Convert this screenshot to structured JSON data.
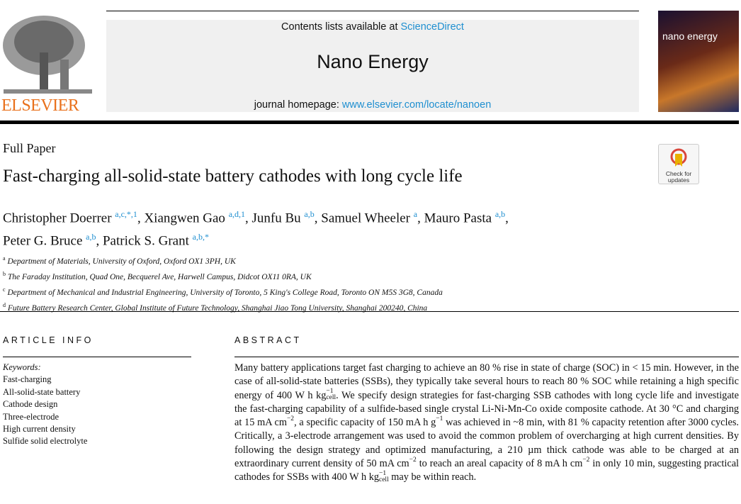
{
  "header": {
    "contents_prefix": "Contents lists available at ",
    "contents_link": "ScienceDirect",
    "journal": "Nano Energy",
    "homepage_prefix": "journal homepage: ",
    "homepage_link": "www.elsevier.com/locate/nanoen",
    "publisher": "ELSEVIER",
    "cover_title": "nano energy"
  },
  "check_updates": "Check for updates",
  "paper": {
    "type": "Full Paper",
    "title": "Fast-charging all-solid-state battery cathodes with long cycle life"
  },
  "authors": [
    {
      "name": "Christopher Doerrer",
      "aff": "a,c,*,1",
      "sep": ", "
    },
    {
      "name": "Xiangwen Gao",
      "aff": "a,d,1",
      "sep": ", "
    },
    {
      "name": "Junfu Bu",
      "aff": "a,b",
      "sep": ", "
    },
    {
      "name": "Samuel Wheeler",
      "aff": "a",
      "sep": ", "
    },
    {
      "name": "Mauro Pasta",
      "aff": "a,b",
      "sep": ","
    },
    {
      "name": "Peter G. Bruce",
      "aff": "a,b",
      "sep": ", "
    },
    {
      "name": "Patrick S. Grant",
      "aff": "a,b,*",
      "sep": ""
    }
  ],
  "affiliations": [
    {
      "key": "a",
      "text": "Department of Materials, University of Oxford, Oxford OX1 3PH, UK"
    },
    {
      "key": "b",
      "text": "The Faraday Institution, Quad One, Becquerel Ave, Harwell Campus, Didcot OX11 0RA, UK"
    },
    {
      "key": "c",
      "text": "Department of Mechanical and Industrial Engineering, University of Toronto, 5 King's College Road, Toronto ON M5S 3G8, Canada"
    },
    {
      "key": "d",
      "text": "Future Battery Research Center, Global Institute of Future Technology, Shanghai Jiao Tong University, Shanghai 200240, China"
    }
  ],
  "article_info": {
    "heading": "ARTICLE INFO",
    "keywords_label": "Keywords:",
    "keywords": [
      "Fast-charging",
      "All-solid-state battery",
      "Cathode design",
      "Three-electrode",
      "High current density",
      "Sulfide solid electrolyte"
    ]
  },
  "abstract": {
    "heading": "ABSTRACT",
    "segments": [
      {
        "t": "Many battery applications target fast charging to achieve an 80 % rise in state of charge (SOC) in < 15 min. However, in the case of all-solid-state batteries (SSBs), they typically take several hours to reach 80 % SOC while retaining a high specific energy of 400 W h kg"
      },
      {
        "sup": "−1",
        "sub": "cell"
      },
      {
        "t": ". We specify design strategies for fast-charging SSB cathodes with long cycle life and investigate the fast-charging capability of a sulfide-based single crystal Li-Ni-Mn-Co oxide composite cathode. At 30 °C and charging at 15 mA cm"
      },
      {
        "sup": "−2"
      },
      {
        "t": ", a specific capacity of 150 mA h g"
      },
      {
        "sup": "−1"
      },
      {
        "t": " was achieved in ~8 min, with 81 % capacity retention after 3000 cycles. Critically, a 3-electrode arrangement was used to avoid the common problem of overcharging at high current densities. By following the design strategy and optimized manufacturing, a 210 µm thick cathode was able to be charged at an extraordinary current density of 50 mA cm"
      },
      {
        "sup": "−2"
      },
      {
        "t": " to reach an areal capacity of 8 mA h cm"
      },
      {
        "sup": "−2"
      },
      {
        "t": " in only 10 min, suggesting practical cathodes for SSBs with 400 W h kg"
      },
      {
        "sup": "−1",
        "sub": "cell"
      },
      {
        "t": " may be within reach."
      }
    ]
  },
  "colors": {
    "link": "#1f8fd0",
    "elsevier_orange": "#e9711c"
  }
}
